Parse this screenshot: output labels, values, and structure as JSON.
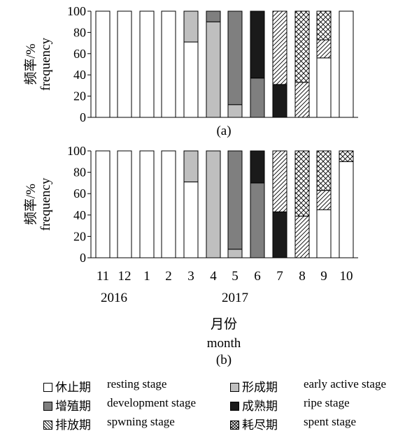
{
  "chart_data": [
    {
      "type": "bar",
      "stacked": true,
      "panel_label": "(a)",
      "ylabel_zh": "频率/%",
      "ylabel_en": "frequency",
      "ylim": [
        0,
        100
      ],
      "yticks": [
        0,
        20,
        40,
        60,
        80,
        100
      ],
      "categories": [
        "11",
        "12",
        "1",
        "2",
        "3",
        "4",
        "5",
        "6",
        "7",
        "8",
        "9",
        "10"
      ],
      "series": [
        {
          "name": "休止期 resting stage",
          "values": [
            100,
            100,
            100,
            100,
            71,
            0,
            0,
            0,
            0,
            0,
            56,
            100
          ]
        },
        {
          "name": "形成期 early active stage",
          "values": [
            0,
            0,
            0,
            0,
            29,
            90,
            12,
            0,
            0,
            0,
            0,
            0
          ]
        },
        {
          "name": "增殖期 development stage",
          "values": [
            0,
            0,
            0,
            0,
            0,
            10,
            88,
            37,
            0,
            0,
            0,
            0
          ]
        },
        {
          "name": "成熟期 ripe stage",
          "values": [
            0,
            0,
            0,
            0,
            0,
            0,
            0,
            63,
            31,
            0,
            0,
            0
          ]
        },
        {
          "name": "排放期 spwning stage",
          "values": [
            0,
            0,
            0,
            0,
            0,
            0,
            0,
            0,
            69,
            33,
            17,
            0
          ]
        },
        {
          "name": "耗尽期 spent stage",
          "values": [
            0,
            0,
            0,
            0,
            0,
            0,
            0,
            0,
            0,
            67,
            27,
            0
          ]
        }
      ]
    },
    {
      "type": "bar",
      "stacked": true,
      "panel_label": "(b)",
      "ylabel_zh": "频率/%",
      "ylabel_en": "frequency",
      "ylim": [
        0,
        100
      ],
      "yticks": [
        0,
        20,
        40,
        60,
        80,
        100
      ],
      "categories": [
        "11",
        "12",
        "1",
        "2",
        "3",
        "4",
        "5",
        "6",
        "7",
        "8",
        "9",
        "10"
      ],
      "year_labels": [
        {
          "text": "2016",
          "at": "11"
        },
        {
          "text": "2017",
          "at": "5"
        }
      ],
      "xlabel_zh": "月份",
      "xlabel_en": "month",
      "series": [
        {
          "name": "休止期 resting stage",
          "values": [
            100,
            100,
            100,
            100,
            71,
            0,
            0,
            0,
            0,
            0,
            45,
            90
          ]
        },
        {
          "name": "形成期 early active stage",
          "values": [
            0,
            0,
            0,
            0,
            29,
            100,
            8,
            0,
            0,
            0,
            0,
            0
          ]
        },
        {
          "name": "增殖期 development stage",
          "values": [
            0,
            0,
            0,
            0,
            0,
            0,
            92,
            70,
            0,
            0,
            0,
            0
          ]
        },
        {
          "name": "成熟期 ripe stage",
          "values": [
            0,
            0,
            0,
            0,
            0,
            0,
            0,
            30,
            43,
            0,
            0,
            0
          ]
        },
        {
          "name": "排放期 spwning stage",
          "values": [
            0,
            0,
            0,
            0,
            0,
            0,
            0,
            0,
            57,
            39,
            18,
            0
          ]
        },
        {
          "name": "耗尽期 spent stage",
          "values": [
            0,
            0,
            0,
            0,
            0,
            0,
            0,
            0,
            0,
            61,
            37,
            10
          ]
        }
      ]
    }
  ],
  "legend": [
    {
      "zh": "休止期",
      "en": "resting stage",
      "fill": "#ffffff"
    },
    {
      "zh": "形成期",
      "en": "early active stage",
      "fill": "#bfbfbf"
    },
    {
      "zh": "增殖期",
      "en": "development stage",
      "fill": "#7f7f7f"
    },
    {
      "zh": "成熟期",
      "en": "ripe stage",
      "fill": "#1a1a1a"
    },
    {
      "zh": "排放期",
      "en": "spwning stage",
      "fill": "diagonal-hatch"
    },
    {
      "zh": "耗尽期",
      "en": "spent stage",
      "fill": "cross-hatch"
    }
  ]
}
